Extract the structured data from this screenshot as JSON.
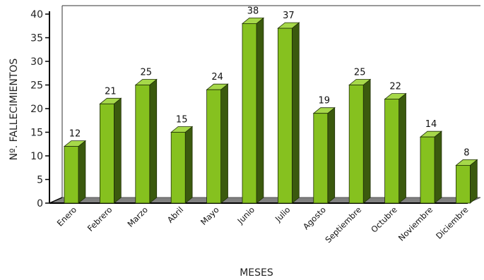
{
  "chart_data": {
    "type": "bar",
    "style": "3d",
    "xlabel": "MESES",
    "ylabel": "Nº. FALLECIMIENTOS",
    "ylim": [
      0,
      40
    ],
    "yticks": [
      0,
      5,
      10,
      15,
      20,
      25,
      30,
      35,
      40
    ],
    "categories": [
      "Enero",
      "Febrero",
      "Marzo",
      "Abril",
      "Mayo",
      "Junio",
      "Julio",
      "Agosto",
      "Septiembre",
      "Octubre",
      "Noviembre",
      "Diciembre"
    ],
    "values": [
      12,
      21,
      25,
      15,
      24,
      38,
      37,
      19,
      25,
      22,
      14,
      8
    ],
    "data_labels": [
      "12",
      "21",
      "25",
      "15",
      "24",
      "38",
      "37",
      "19",
      "25",
      "22",
      "14",
      "8"
    ],
    "grid": false,
    "legend": "none",
    "colors": {
      "bar_front": "#86c11f",
      "bar_side": "#3b5a0e",
      "bar_top": "#a6d84a",
      "floor": "#808080",
      "axis": "#000000"
    }
  }
}
